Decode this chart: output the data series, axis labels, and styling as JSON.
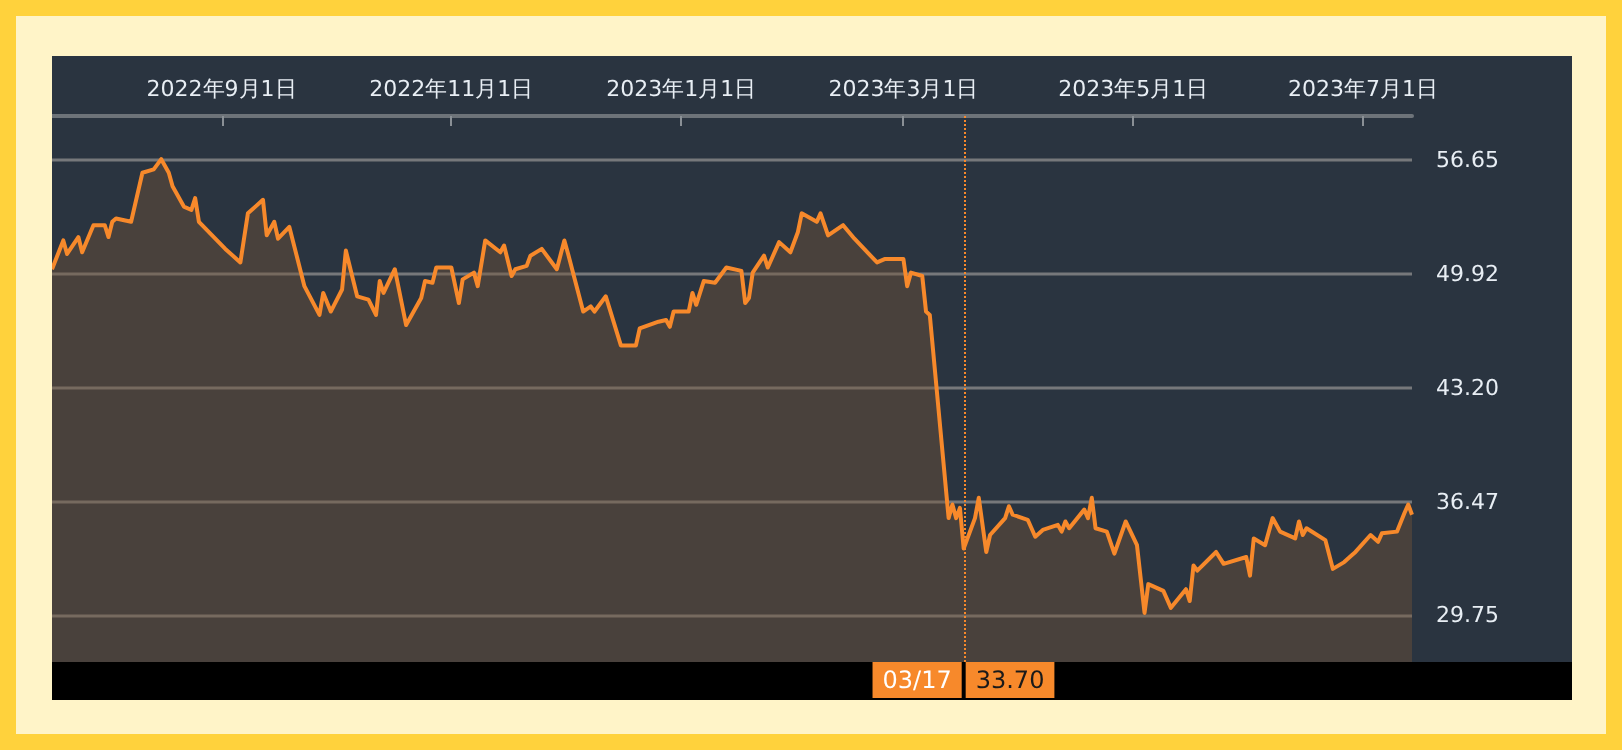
{
  "chart_data": {
    "type": "area",
    "x": [
      "2022-07-18",
      "2022-07-21",
      "2022-07-22",
      "2022-07-25",
      "2022-07-26",
      "2022-07-29",
      "2022-08-01",
      "2022-08-02",
      "2022-08-03",
      "2022-08-04",
      "2022-08-08",
      "2022-08-11",
      "2022-08-14",
      "2022-08-16",
      "2022-08-18",
      "2022-08-19",
      "2022-08-22",
      "2022-08-24",
      "2022-08-25",
      "2022-08-26",
      "2022-09-02",
      "2022-09-06",
      "2022-09-08",
      "2022-09-12",
      "2022-09-13",
      "2022-09-15",
      "2022-09-16",
      "2022-09-19",
      "2022-09-23",
      "2022-09-27",
      "2022-09-28",
      "2022-09-30",
      "2022-10-03",
      "2022-10-04",
      "2022-10-07",
      "2022-10-10",
      "2022-10-12",
      "2022-10-13",
      "2022-10-14",
      "2022-10-17",
      "2022-10-20",
      "2022-10-24",
      "2022-10-25",
      "2022-10-27",
      "2022-10-28",
      "2022-11-01",
      "2022-11-03",
      "2022-11-04",
      "2022-11-07",
      "2022-11-08",
      "2022-11-10",
      "2022-11-14",
      "2022-11-15",
      "2022-11-17",
      "2022-11-18",
      "2022-11-21",
      "2022-11-22",
      "2022-11-25",
      "2022-11-29",
      "2022-12-01",
      "2022-12-02",
      "2022-12-06",
      "2022-12-08",
      "2022-12-09",
      "2022-12-12",
      "2022-12-16",
      "2022-12-20",
      "2022-12-21",
      "2022-12-26",
      "2022-12-28",
      "2022-12-29",
      "2022-12-30",
      "2023-01-03",
      "2023-01-04",
      "2023-01-05",
      "2023-01-07",
      "2023-01-10",
      "2023-01-13",
      "2023-01-17",
      "2023-01-18",
      "2023-01-19",
      "2023-01-20",
      "2023-01-23",
      "2023-01-24",
      "2023-01-27",
      "2023-01-30",
      "2023-02-01",
      "2023-02-02",
      "2023-02-06",
      "2023-02-07",
      "2023-02-09",
      "2023-02-13",
      "2023-02-16",
      "2023-02-22",
      "2023-02-24",
      "2023-03-01",
      "2023-03-02",
      "2023-03-03",
      "2023-03-06",
      "2023-03-07",
      "2023-03-08",
      "2023-03-13",
      "2023-03-14",
      "2023-03-15",
      "2023-03-16",
      "2023-03-17",
      "2023-03-20",
      "2023-03-21",
      "2023-03-23",
      "2023-03-24",
      "2023-03-28",
      "2023-03-29",
      "2023-03-30",
      "2023-04-03",
      "2023-04-05",
      "2023-04-07",
      "2023-04-11",
      "2023-04-12",
      "2023-04-13",
      "2023-04-14",
      "2023-04-18",
      "2023-04-19",
      "2023-04-20",
      "2023-04-21",
      "2023-04-24",
      "2023-04-26",
      "2023-04-29",
      "2023-05-02",
      "2023-05-03",
      "2023-05-04",
      "2023-05-05",
      "2023-05-09",
      "2023-05-11",
      "2023-05-15",
      "2023-05-16",
      "2023-05-17",
      "2023-05-18",
      "2023-05-23",
      "2023-05-25",
      "2023-05-31",
      "2023-06-01",
      "2023-06-02",
      "2023-06-05",
      "2023-06-07",
      "2023-06-09",
      "2023-06-13",
      "2023-06-14",
      "2023-06-15",
      "2023-06-16",
      "2023-06-21",
      "2023-06-23",
      "2023-06-26",
      "2023-06-28",
      "2023-06-29",
      "2023-07-03",
      "2023-07-05",
      "2023-07-06",
      "2023-07-10",
      "2023-07-12",
      "2023-07-13",
      "2023-07-14"
    ],
    "series": [
      {
        "color": "#f7892b",
        "values": [
          50.2,
          51.9,
          51.1,
          52.1,
          51.2,
          52.8,
          52.8,
          52.1,
          53.0,
          53.2,
          53.0,
          55.9,
          56.1,
          56.7,
          55.9,
          55.1,
          53.9,
          53.7,
          54.4,
          53.0,
          51.4,
          50.6,
          53.5,
          54.3,
          52.2,
          53.0,
          52.0,
          52.7,
          49.2,
          47.5,
          48.8,
          47.7,
          49.0,
          51.3,
          48.6,
          48.4,
          47.5,
          49.5,
          48.8,
          50.2,
          46.9,
          48.5,
          49.5,
          49.4,
          50.3,
          50.3,
          48.2,
          49.6,
          50.0,
          49.2,
          51.9,
          51.2,
          51.6,
          49.8,
          50.2,
          50.4,
          51.0,
          51.4,
          50.2,
          51.9,
          51.1,
          47.7,
          48.0,
          47.7,
          48.6,
          45.7,
          45.7,
          46.7,
          47.1,
          47.2,
          46.8,
          47.7,
          47.7,
          48.8,
          48.1,
          49.5,
          49.4,
          50.3,
          50.1,
          48.2,
          48.5,
          50.0,
          51.0,
          50.3,
          51.8,
          51.2,
          52.4,
          53.5,
          53.0,
          53.5,
          52.2,
          52.8,
          52.0,
          50.6,
          50.8,
          50.8,
          49.2,
          50.0,
          49.8,
          47.7,
          47.5,
          35.5,
          36.3,
          35.5,
          36.1,
          33.7,
          35.5,
          36.7,
          33.5,
          34.5,
          35.5,
          36.2,
          35.7,
          35.4,
          34.4,
          34.8,
          35.1,
          34.7,
          35.3,
          34.9,
          36.0,
          35.5,
          36.7,
          34.9,
          34.7,
          33.4,
          35.3,
          33.9,
          31.9,
          29.9,
          31.6,
          31.2,
          30.2,
          31.3,
          30.6,
          32.7,
          32.4,
          33.5,
          32.8,
          33.2,
          32.1,
          34.3,
          33.9,
          35.5,
          34.7,
          34.3,
          35.3,
          34.5,
          34.9,
          34.2,
          32.5,
          32.9,
          33.3,
          33.5,
          34.5,
          34.1,
          34.6,
          34.7,
          35.8,
          36.3,
          35.7
        ]
      }
    ],
    "xlim": [
      "2022-07-18",
      "2023-07-14"
    ],
    "xticks": [
      {
        "value": "2022-09-01",
        "label": "2022年9月1日"
      },
      {
        "value": "2022-11-01",
        "label": "2022年11月1日"
      },
      {
        "value": "2023-01-01",
        "label": "2023年1月1日"
      },
      {
        "value": "2023-03-01",
        "label": "2023年3月1日"
      },
      {
        "value": "2023-05-01",
        "label": "2023年5月1日"
      },
      {
        "value": "2023-07-01",
        "label": "2023年7月1日"
      }
    ],
    "ylim": [
      27.0,
      59.25
    ],
    "yticks": [
      29.75,
      36.47,
      {
        "value": 43.2,
        "label": "43.20"
      },
      49.92,
      56.65
    ],
    "grid": "y",
    "marker": "none",
    "ref_lines": [
      {
        "axis": "x",
        "value": "2023-03-17",
        "label": "03/17",
        "color": "#f7892b",
        "line_style": "dotted"
      }
    ],
    "annotations": [
      "33.70"
    ]
  }
}
